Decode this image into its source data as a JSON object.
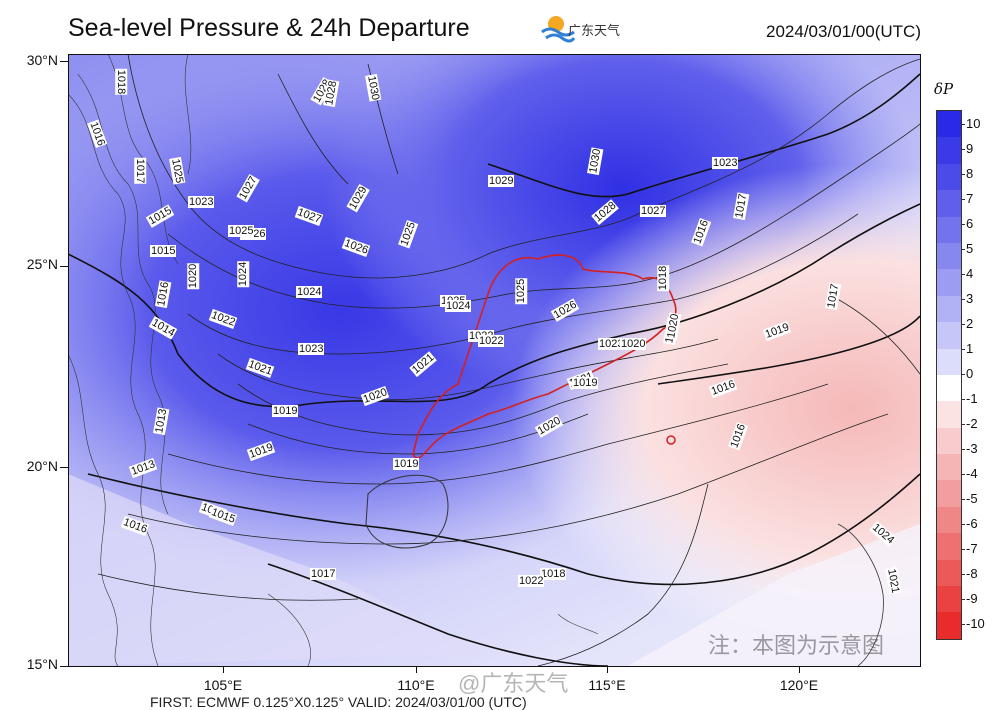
{
  "header": {
    "title": "Sea-level Pressure & 24h Departure",
    "logo_text": "广东天气",
    "datetime": "2024/03/01/00(UTC)"
  },
  "axes": {
    "y_labels": [
      "30°N",
      "25°N",
      "20°N",
      "15°N"
    ],
    "x_labels": [
      "105°E",
      "110°E",
      "115°E",
      "120°E"
    ]
  },
  "colorbar": {
    "title": "δP",
    "labels": [
      "10",
      "9",
      "8",
      "7",
      "6",
      "5",
      "4",
      "3",
      "2",
      "1",
      "0",
      "-1",
      "-2",
      "-3",
      "-4",
      "-5",
      "-6",
      "-7",
      "-8",
      "-9",
      "-10"
    ],
    "colors": [
      "#2a2ae6",
      "#3a3ae8",
      "#4b4bea",
      "#5f5fec",
      "#7373ee",
      "#8787f0",
      "#9c9cf3",
      "#b1b1f6",
      "#c6c6f8",
      "#dcdcfb",
      "#ffffff",
      "#fbe3e3",
      "#f8cccc",
      "#f6b5b5",
      "#f39e9e",
      "#f08787",
      "#ee7070",
      "#ec5959",
      "#ea4242",
      "#e82b2b"
    ]
  },
  "contours": [
    "1018",
    "1016",
    "1017",
    "1025",
    "1015",
    "1023",
    "1027",
    "1026",
    "1024",
    "1020",
    "1022",
    "1021",
    "1019",
    "1028",
    "1030",
    "1029",
    "1025",
    "1015",
    "1016",
    "1014",
    "1013",
    "1013",
    "1016",
    "1018",
    "1019",
    "1020",
    "1021",
    "1022",
    "1023",
    "1024",
    "1025",
    "1026",
    "1027",
    "1028",
    "1029",
    "1030",
    "1028",
    "1027",
    "1026",
    "1025",
    "1023",
    "1024",
    "1021",
    "1020",
    "1019",
    "1018",
    "1017",
    "1016",
    "1015",
    "1016",
    "1017",
    "1019",
    "1018",
    "1016",
    "1017",
    "1023",
    "1025",
    "1024",
    "1021",
    "1020",
    "1022",
    "1022",
    "1019",
    "1020",
    "1024"
  ],
  "note": "注：本图为示意图",
  "watermark": "@广东天气",
  "bottom_text": "FIRST: ECMWF 0.125°X0.125°         VALID: 2024/03/01/00  (UTC)"
}
